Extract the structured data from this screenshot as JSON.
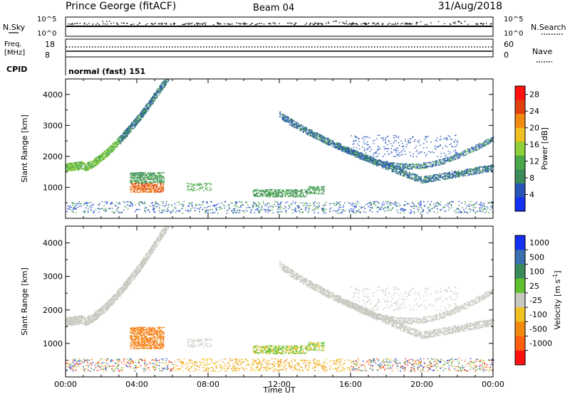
{
  "header": {
    "station": "Prince George (fitACF)",
    "beam": "Beam 04",
    "date": "31/Aug/2018"
  },
  "status_panels": {
    "nsky_label": "N.Sky",
    "nsearch_label": "N.Search",
    "noise_ticks": [
      "10^5",
      "10^0"
    ],
    "freq_label_1": "Freq.",
    "freq_label_2": "[MHz]",
    "freq_ticks": [
      "18",
      "8"
    ],
    "nave_label": "Nave",
    "nave_ticks": [
      "60",
      "0"
    ],
    "cpid_label": "CPID",
    "cpid_value": "normal (fast) 151"
  },
  "colors": {
    "power": [
      "#1430f0",
      "#2a55b8",
      "#3b8a5a",
      "#4aa84a",
      "#8fcf3a",
      "#f0c020",
      "#f08a10",
      "#e04010",
      "#ff1010"
    ],
    "velocity": [
      "#1430f0",
      "#3a70b0",
      "#3b8a5a",
      "#60c030",
      "#c8c8c0",
      "#f0c020",
      "#f08a10",
      "#ff6010",
      "#ff1010"
    ]
  },
  "chart_data": [
    {
      "type": "heatmap",
      "ylabel": "Slant Range [km]",
      "x_ticks": [
        "00:00",
        "04:00",
        "08:00",
        "12:00",
        "16:00",
        "20:00",
        "00:00"
      ],
      "y_ticks": [
        "1000",
        "2000",
        "3000",
        "4000"
      ],
      "ylim": [
        0,
        4500
      ],
      "xlim_hours": [
        0,
        24
      ],
      "colorbar_label": "Power [dB]",
      "colorbar_ticks": [
        "4",
        "8",
        "12",
        "16",
        "20",
        "24",
        "28"
      ],
      "colorbar_range": [
        0,
        30
      ]
    },
    {
      "type": "heatmap",
      "ylabel": "Slant Range [km]",
      "xlabel": "Time UT",
      "x_ticks": [
        "00:00",
        "04:00",
        "08:00",
        "12:00",
        "16:00",
        "20:00",
        "00:00"
      ],
      "y_ticks": [
        "1000",
        "2000",
        "3000",
        "4000"
      ],
      "ylim": [
        0,
        4500
      ],
      "xlim_hours": [
        0,
        24
      ],
      "colorbar_label": "Velocity [m s",
      "colorbar_label_sup": "-1",
      "colorbar_label_end": "]",
      "colorbar_ticks": [
        "1000",
        "500",
        "100",
        "25",
        "-25",
        "-100",
        "-500",
        "-1000"
      ]
    }
  ]
}
